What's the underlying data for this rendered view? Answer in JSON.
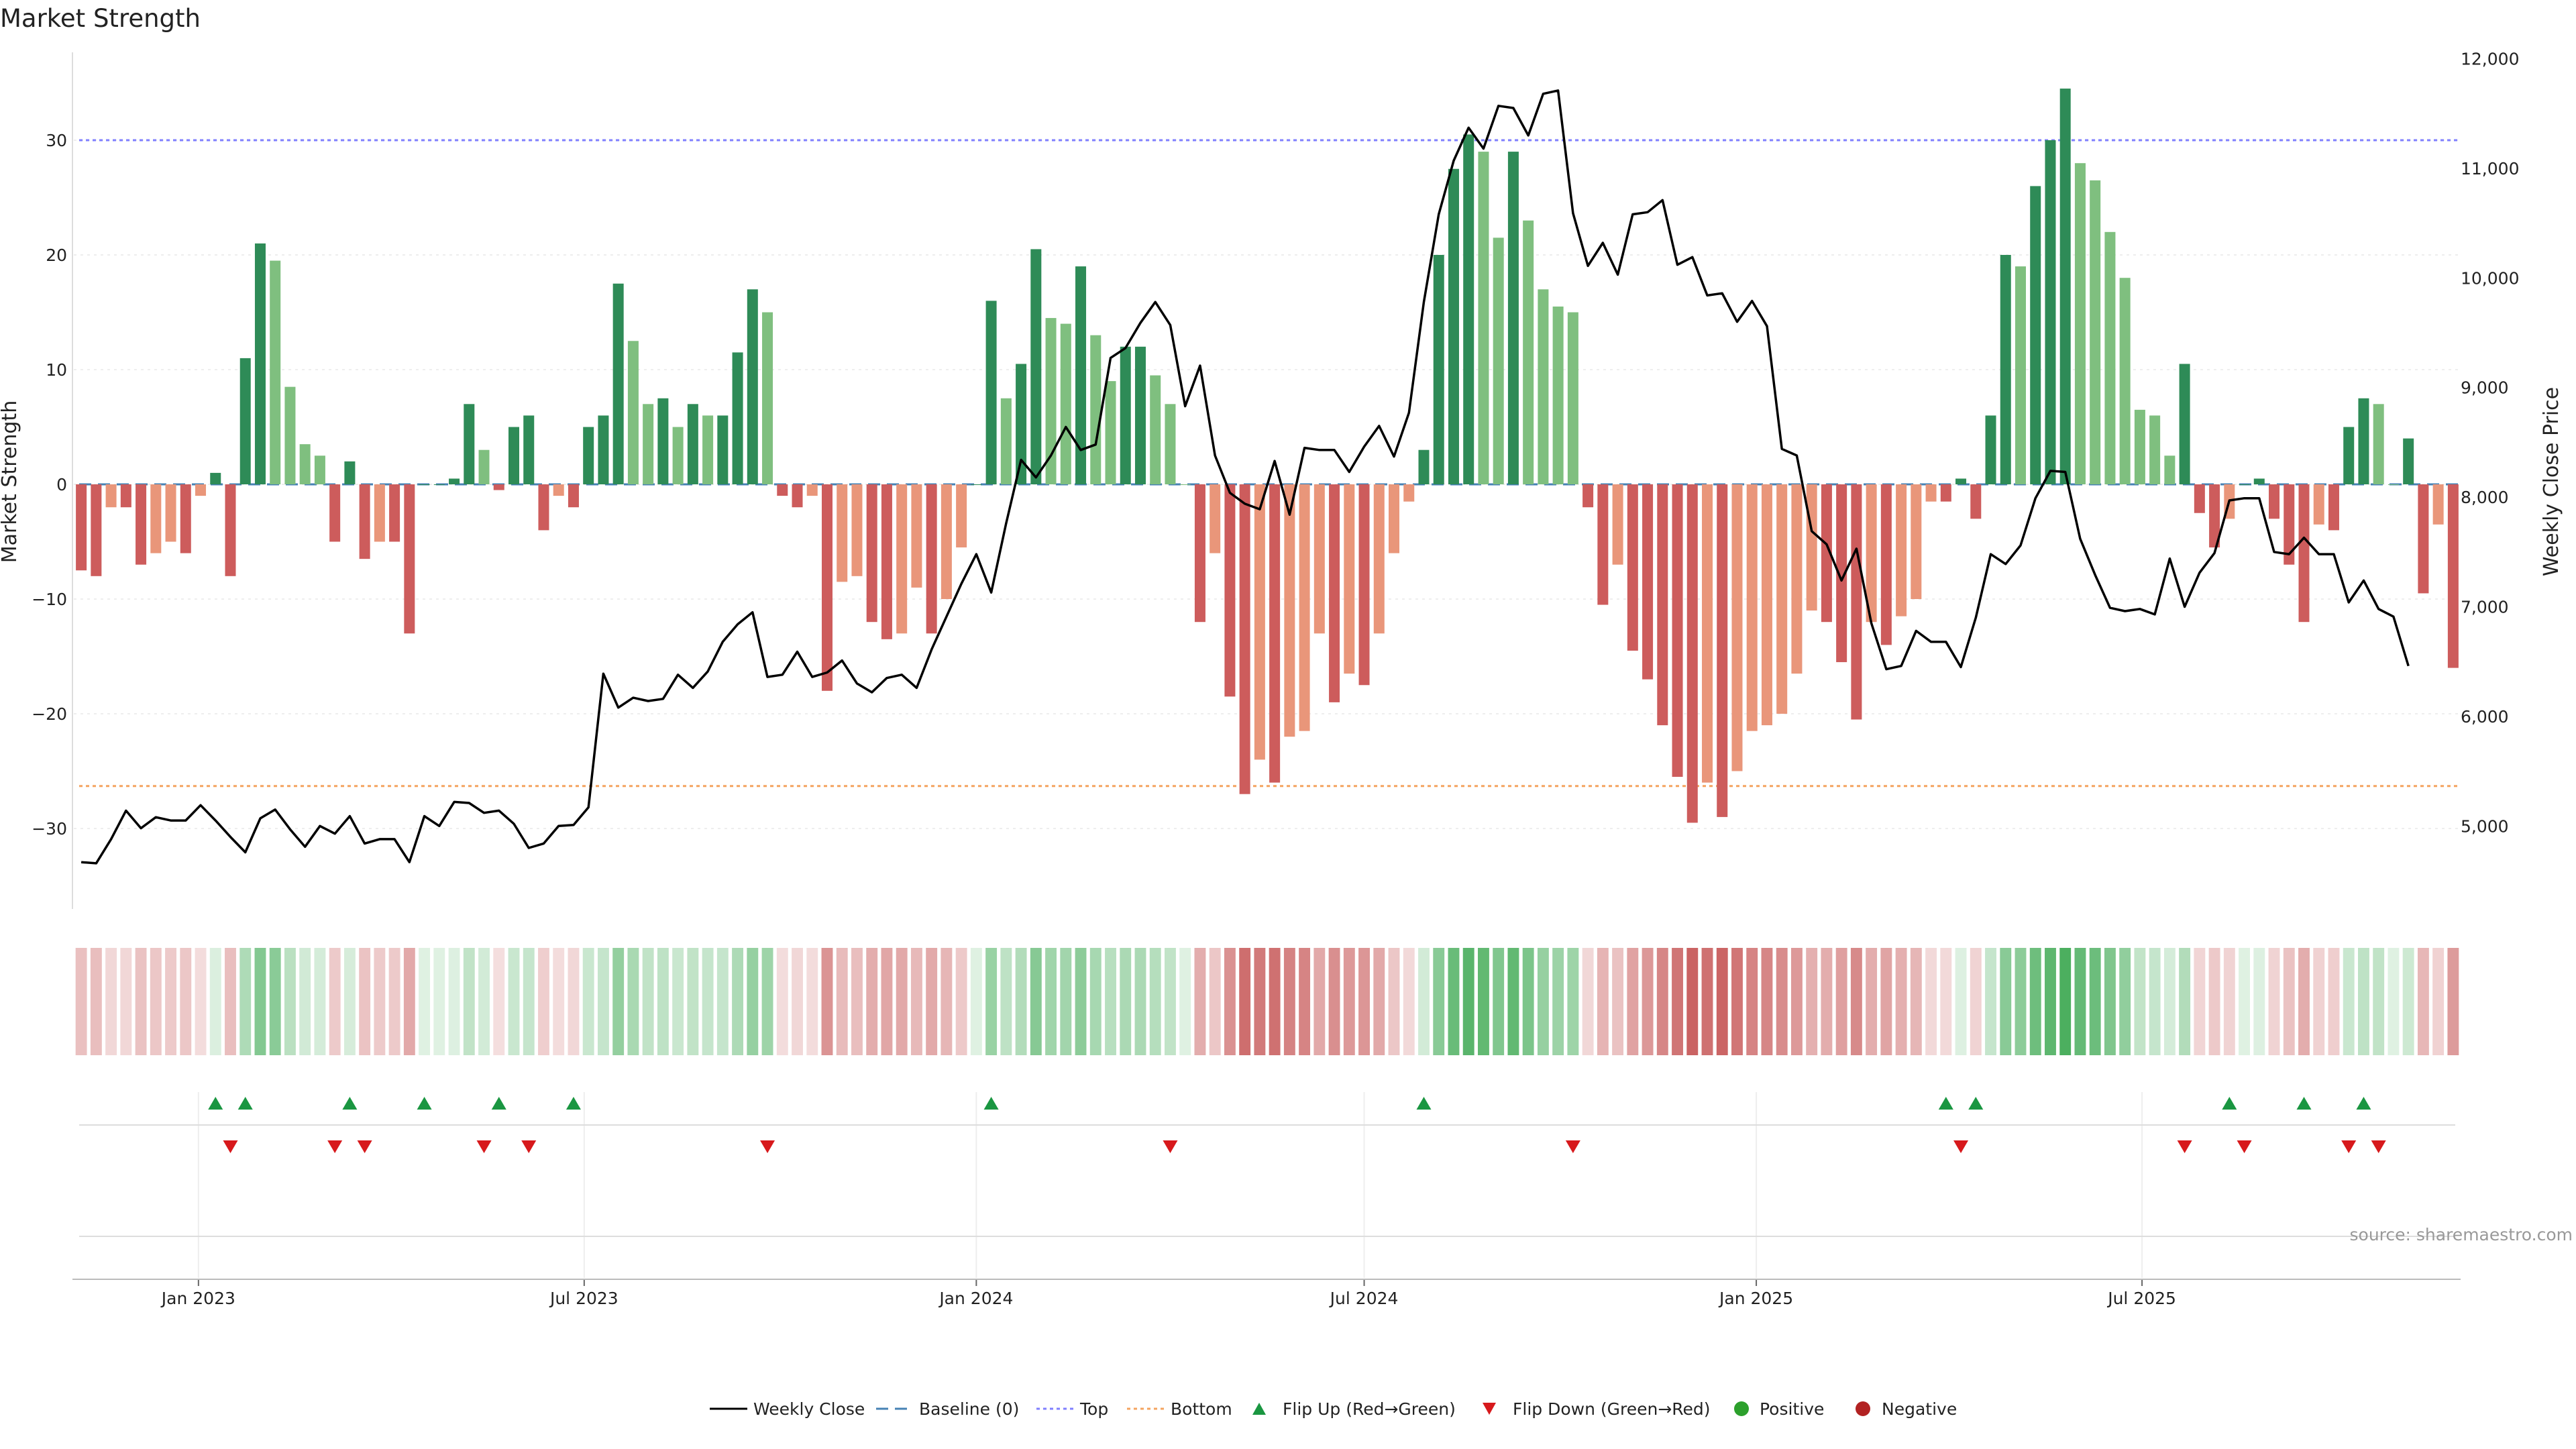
{
  "chart_data": {
    "type": "bar",
    "title": "Market Strength",
    "ylabel_left": "Market Strength",
    "ylabel_right": "Weekly Close Price",
    "ylim_left": [
      -37,
      37
    ],
    "yticks_left": [
      "30",
      "20",
      "10",
      "0",
      "−10",
      "−20",
      "−30"
    ],
    "ylim_right": [
      4300,
      12100
    ],
    "yticks_right": [
      "12,000",
      "11,000",
      "10,000",
      "9,000",
      "8,000",
      "7,000",
      "6,000",
      "5,000"
    ],
    "x_start": "2022-11-07",
    "x_step_days": 7,
    "xticks": [
      {
        "label": "Jan 2023",
        "date": "2023-01-01"
      },
      {
        "label": "Jul 2023",
        "date": "2023-07-01"
      },
      {
        "label": "Jan 2024",
        "date": "2024-01-01"
      },
      {
        "label": "Jul 2024",
        "date": "2024-07-01"
      },
      {
        "label": "Jan 2025",
        "date": "2025-01-01"
      },
      {
        "label": "Jul 2025",
        "date": "2025-07-01"
      }
    ],
    "reference_lines": {
      "top": 30,
      "bottom": -26.3,
      "baseline": 0
    },
    "strength": [
      -7.5,
      -8,
      -2,
      -2,
      -7,
      -6,
      -5,
      -6,
      -1,
      1,
      -8,
      11,
      21,
      19.5,
      8.5,
      3.5,
      2.5,
      -5,
      2,
      -6.5,
      -5,
      -5,
      -13,
      0,
      0,
      0.5,
      7,
      3,
      -0.5,
      5,
      6,
      -4,
      -1,
      -2,
      5,
      6,
      17.5,
      12.5,
      7,
      7.5,
      5,
      7,
      6,
      6,
      11.5,
      17,
      15,
      -1,
      -2,
      -1,
      -18,
      -8.5,
      -8,
      -12,
      -13.5,
      -13,
      -9,
      -13,
      -10,
      -5.5,
      0,
      16,
      7.5,
      10.5,
      20.5,
      14.5,
      14,
      19,
      13,
      9,
      12,
      12,
      9.5,
      7,
      0,
      -12,
      -6,
      -18.5,
      -27,
      -24,
      -26,
      -22,
      -21.5,
      -13,
      -19,
      -16.5,
      -17.5,
      -13,
      -6,
      -1.5,
      3,
      20,
      27.5,
      30.5,
      29,
      21.5,
      29,
      23,
      17,
      15.5,
      15,
      -2,
      -10.5,
      -7,
      -14.5,
      -17,
      -21,
      -25.5,
      -29.5,
      -26,
      -29,
      -25,
      -21.5,
      -21,
      -20,
      -16.5,
      -11,
      -12,
      -15.5,
      -20.5,
      -12,
      -14,
      -11.5,
      -10,
      -1.5,
      -1.5,
      0.5,
      -3,
      6,
      20,
      19,
      26,
      30,
      34.5,
      28,
      26.5,
      22,
      18,
      6.5,
      6,
      2.5,
      10.5,
      -2.5,
      -5.5,
      -3,
      0,
      0.5,
      -3,
      -7,
      -12,
      -3.5,
      -4,
      5,
      7.5,
      7,
      0,
      4,
      -9.5,
      -3.5,
      -16
    ],
    "weekly_close": [
      4670,
      4660,
      4880,
      5140,
      4980,
      5080,
      5050,
      5050,
      5190,
      5050,
      4900,
      4760,
      5070,
      5150,
      4970,
      4810,
      5000,
      4930,
      5090,
      4840,
      4880,
      4880,
      4670,
      5090,
      5000,
      5220,
      5210,
      5120,
      5140,
      5020,
      4800,
      4840,
      5000,
      5010,
      5170,
      6390,
      6080,
      6170,
      6140,
      6160,
      6380,
      6260,
      6410,
      6680,
      6840,
      6950,
      6360,
      6380,
      6590,
      6360,
      6400,
      6510,
      6300,
      6220,
      6350,
      6380,
      6260,
      6610,
      6910,
      7210,
      7480,
      7130,
      7760,
      8340,
      8180,
      8380,
      8640,
      8430,
      8480,
      9270,
      9360,
      9590,
      9780,
      9570,
      8830,
      9200,
      8380,
      8040,
      7940,
      7890,
      8330,
      7840,
      8450,
      8430,
      8430,
      8230,
      8460,
      8650,
      8370,
      8770,
      9780,
      10580,
      11070,
      11370,
      11180,
      11570,
      11550,
      11300,
      11680,
      11710,
      10590,
      10110,
      10320,
      10030,
      10580,
      10600,
      10710,
      10120,
      10190,
      9840,
      9860,
      9600,
      9790,
      9560,
      8440,
      8380,
      7690,
      7570,
      7240,
      7530,
      6850,
      6430,
      6460,
      6780,
      6680,
      6680,
      6450,
      6900,
      7480,
      7390,
      7560,
      7990,
      8240,
      8230,
      7620,
      7290,
      6990,
      6960,
      6980,
      6930,
      7440,
      7000,
      7310,
      7490,
      7970,
      7990,
      7990,
      7500,
      7480,
      7630,
      7480,
      7480,
      7040,
      7240,
      6980,
      6910,
      6460
    ],
    "flip_up_indices": [
      9,
      11,
      18,
      23,
      28,
      33,
      61,
      90,
      125,
      127,
      144,
      149,
      153
    ],
    "flip_down_indices": [
      10,
      17,
      19,
      27,
      30,
      46,
      73,
      100,
      126,
      141,
      145,
      152,
      154
    ],
    "legend": [
      "Weekly Close",
      "Baseline (0)",
      "Top",
      "Bottom",
      "Flip Up (Red→Green)",
      "Flip Down (Green→Red)",
      "Positive",
      "Negative"
    ],
    "colors": {
      "pos_strong": "#2e8b57",
      "pos_light": "#7fbf7f",
      "neg_strong": "#cd5c5c",
      "neg_light": "#e9967a",
      "flip_up": "#1a9641",
      "flip_down": "#d7191c",
      "top_line": "#8080ff",
      "bottom_line": "#f4a460",
      "baseline": "#4682b4",
      "price": "#000000",
      "positive_dot": "#2ca02c",
      "negative_dot": "#b22222"
    }
  },
  "source": "source: sharemaestro.com"
}
